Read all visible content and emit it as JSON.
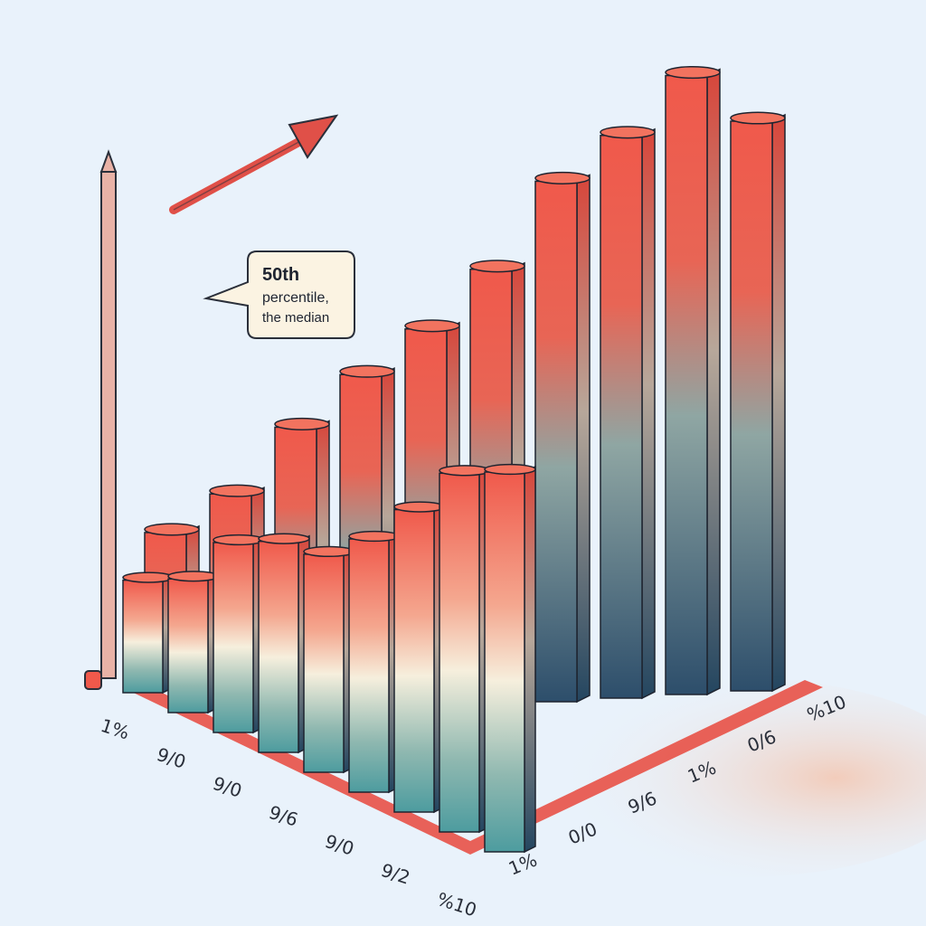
{
  "chart_data": {
    "type": "bar",
    "title": "",
    "xlabel": "",
    "ylabel": "",
    "front_row_ticks": [
      "1%",
      "9/0",
      "9/0",
      "9/6",
      "9/0",
      "9/2",
      "%10"
    ],
    "back_row_ticks": [
      "1%",
      "0/0",
      "9/6",
      "1%",
      "0/6",
      "%10"
    ],
    "front_row_values": [
      16,
      19,
      27,
      30,
      31,
      36,
      43,
      51,
      54
    ],
    "back_row_values": [
      22,
      28,
      38,
      46,
      53,
      62,
      74,
      80,
      88,
      81
    ],
    "annotation": {
      "line1": "50th",
      "line2": "percentile,",
      "line3": "the median"
    },
    "colors": {
      "bar_top": "#f0594b",
      "bar_middle": "#f6efdd",
      "bar_bottom": "#2d4e6b",
      "bar_teal": "#4d9c9f",
      "floor_red": "#e8483c",
      "arrow": "#e05048"
    },
    "trend_arrow": "up-right"
  }
}
